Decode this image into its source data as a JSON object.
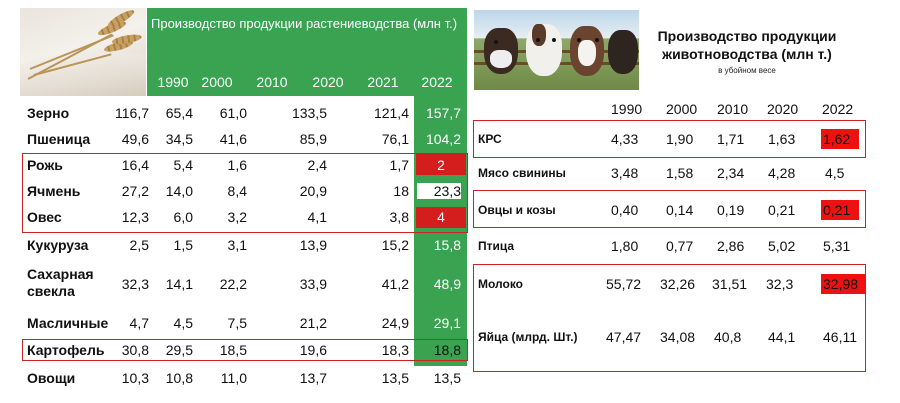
{
  "left": {
    "title": "Производство продукции растениеводства (млн т.)",
    "years": [
      "1990",
      "2000",
      "2010",
      "2020",
      "2021",
      "2022"
    ],
    "rows": [
      {
        "name": "Зерно",
        "values": [
          "116,7",
          "65,4",
          "61,0",
          "133,5",
          "121,4",
          "157,7"
        ]
      },
      {
        "name": "Пшеница",
        "values": [
          "49,6",
          "34,5",
          "41,6",
          "85,9",
          "76,1",
          "104,2"
        ]
      },
      {
        "name": "Рожь",
        "values": [
          "16,4",
          "5,4",
          "1,6",
          "2,4",
          "1,7",
          "2"
        ]
      },
      {
        "name": "Ячмень",
        "values": [
          "27,2",
          "14,0",
          "8,4",
          "20,9",
          "18",
          "23,3"
        ]
      },
      {
        "name": "Овес",
        "values": [
          "12,3",
          "6,0",
          "3,2",
          "4,1",
          "3,8",
          "4"
        ]
      },
      {
        "name": "Кукуруза",
        "values": [
          "2,5",
          "1,5",
          "3,1",
          "13,9",
          "15,2",
          "15,8"
        ]
      },
      {
        "name": "Сахарная свекла",
        "values": [
          "32,3",
          "14,1",
          "22,2",
          "33,9",
          "41,2",
          "48,9"
        ]
      },
      {
        "name": "Масличные",
        "values": [
          "4,7",
          "4,5",
          "7,5",
          "21,2",
          "24,9",
          "29,1"
        ]
      },
      {
        "name": "Картофель",
        "values": [
          "30,8",
          "29,5",
          "18,5",
          "19,6",
          "18,3",
          "18,8"
        ]
      },
      {
        "name": "Овощи",
        "values": [
          "10,3",
          "10,8",
          "11,0",
          "13,7",
          "13,5",
          "13,5"
        ]
      }
    ],
    "colors": {
      "green": "#3aa352",
      "red": "#d41d1d",
      "outline": "#cc2222"
    }
  },
  "right": {
    "title": "Производство продукции животноводства (млн т.)",
    "subtitle": "в убойном весе",
    "years": [
      "1990",
      "2000",
      "2010",
      "2020",
      "2022"
    ],
    "rows": [
      {
        "name": "КРС",
        "values": [
          "4,33",
          "1,90",
          "1,71",
          "1,63",
          "1,62"
        ]
      },
      {
        "name": "Мясо свинины",
        "values": [
          "3,48",
          "1,58",
          "2,34",
          "4,28",
          "4,5"
        ]
      },
      {
        "name": "Овцы и козы",
        "values": [
          "0,40",
          "0,14",
          "0,19",
          "0,21",
          "0,21"
        ]
      },
      {
        "name": "Птица",
        "values": [
          "1,80",
          "0,77",
          "2,86",
          "5,02",
          "5,31"
        ]
      },
      {
        "name": "Молоко",
        "values": [
          "55,72",
          "32,26",
          "31,51",
          "32,3",
          "32,98"
        ]
      },
      {
        "name": "Яйца (млрд. Шт.)",
        "values": [
          "47,47",
          "34,08",
          "40,8",
          "44,1",
          "46,11"
        ]
      }
    ],
    "colors": {
      "red": "#ee1111",
      "outline": "#cc2222"
    }
  },
  "images": {
    "left_photo": "wheat-photo",
    "right_photo": "cows-photo"
  }
}
